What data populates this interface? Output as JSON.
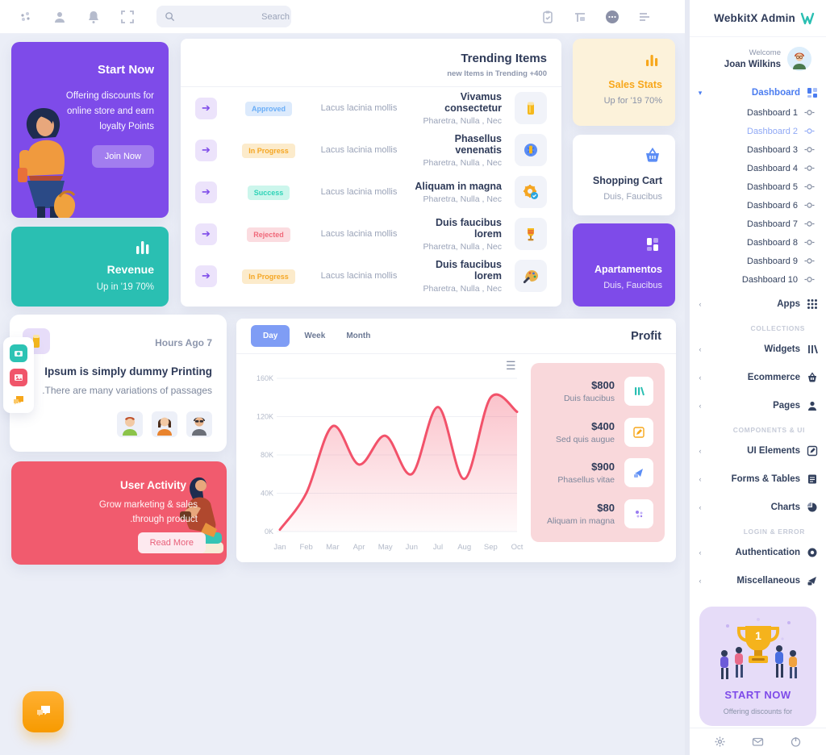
{
  "topbar": {
    "search_placeholder": "Search"
  },
  "sidebar": {
    "brand": "WebkitX Admin",
    "welcome_label": "Welcome",
    "user_name": "Joan Wilkins",
    "dashboard_label": "Dashboard",
    "apps_label": "Apps",
    "dashboard_items": [
      "Dashboard 1",
      "Dashboard 2",
      "Dashboard 3",
      "Dashboard 4",
      "Dashboard 5",
      "Dashboard 6",
      "Dashboard 7",
      "Dashboard 8",
      "Dashboard 9",
      "Dashboard 10"
    ],
    "active_item": "Dashboard 2",
    "groups": [
      {
        "section": "COLLECTIONS",
        "items": [
          "Widgets",
          "Ecommerce",
          "Pages"
        ]
      },
      {
        "section": "COMPONENTS & UI",
        "items": [
          "UI Elements",
          "Forms & Tables",
          "Charts"
        ]
      },
      {
        "section": "LOGIN & ERROR",
        "items": [
          "Authentication",
          "Miscellaneous"
        ]
      }
    ],
    "promo": {
      "title": "START NOW",
      "subtitle": "Offering discounts for"
    }
  },
  "start_now": {
    "title": "Start Now",
    "text": "Offering discounts for online store and earn loyalty Points",
    "button": "Join Now"
  },
  "revenue": {
    "title": "Revenue",
    "subtitle": "Up in '19 70%"
  },
  "sales_stats": {
    "title": "Sales Stats",
    "subtitle": "Up for '19 70%"
  },
  "shopping_cart": {
    "title": "Shopping Cart",
    "subtitle": "Duis, Faucibus"
  },
  "apartamentos": {
    "title": "Apartamentos",
    "subtitle": "Duis, Faucibus"
  },
  "trending": {
    "title": "Trending Items",
    "subtitle": "new Items in Trending +400",
    "rows": [
      {
        "status": "Approved",
        "middle": "Lacus lacinia mollis",
        "title": "Vivamus consectetur",
        "subtitle": "Pharetra, Nulla , Nec",
        "icon": "beer-icon"
      },
      {
        "status": "In Progress",
        "middle": "Lacus lacinia mollis",
        "title": "Phasellus venenatis",
        "subtitle": "Pharetra, Nulla , Nec",
        "icon": "gear-wrench-icon"
      },
      {
        "status": "Success",
        "middle": "Lacus lacinia mollis",
        "title": "Aliquam in magna",
        "subtitle": "Pharetra, Nulla , Nec",
        "icon": "gear-check-icon"
      },
      {
        "status": "Rejected",
        "middle": "Lacus lacinia mollis",
        "title": "Duis faucibus lorem",
        "subtitle": "Pharetra, Nulla , Nec",
        "icon": "trophy-icon"
      },
      {
        "status": "In Progress",
        "middle": "Lacus lacinia mollis",
        "title": "Duis faucibus lorem",
        "subtitle": "Pharetra, Nulla , Nec",
        "icon": "palette-icon"
      }
    ]
  },
  "news": {
    "time": "Hours Ago 7",
    "title": "Ipsum is simply dummy Printing",
    "subtitle": ".There are many variations of passages"
  },
  "user_activity": {
    "title": "User Activity",
    "line1": "Grow marketing & sales",
    "line2": ".through product",
    "button": "Read More"
  },
  "profit": {
    "title": "Profit",
    "tabs": [
      "Day",
      "Week",
      "Month"
    ],
    "active_tab": "Day",
    "stats": [
      {
        "value": "$800",
        "label": "Duis faucibus",
        "icon": "bars-icon"
      },
      {
        "value": "$400",
        "label": "Sed quis augue",
        "icon": "pencil-icon"
      },
      {
        "value": "$900",
        "label": "Phasellus vitae",
        "icon": "send-icon"
      },
      {
        "value": "$80",
        "label": "Aliquam in magna",
        "icon": "dots-icon"
      }
    ]
  },
  "chart_data": {
    "type": "area",
    "title": "Profit",
    "x": [
      "Jan",
      "Feb",
      "Mar",
      "Apr",
      "May",
      "Jun",
      "Jul",
      "Aug",
      "Sep",
      "Oct"
    ],
    "values": [
      2,
      40,
      110,
      70,
      100,
      60,
      130,
      55,
      140,
      125
    ],
    "unit": "K",
    "xlabel": "",
    "ylabel": "",
    "y_ticks": [
      "0K",
      "40K",
      "80K",
      "120K",
      "160K"
    ],
    "ylim": [
      0,
      160
    ],
    "grid": true,
    "legend_position": "none",
    "line_color": "#f2526a",
    "fill_color": "rgba(242,82,106,0.30)"
  },
  "colors": {
    "purple": "#7e4be9",
    "teal": "#2abfb2",
    "orange": "#f7a71b",
    "red": "#f15b6e",
    "blue": "#4a7cf0"
  }
}
